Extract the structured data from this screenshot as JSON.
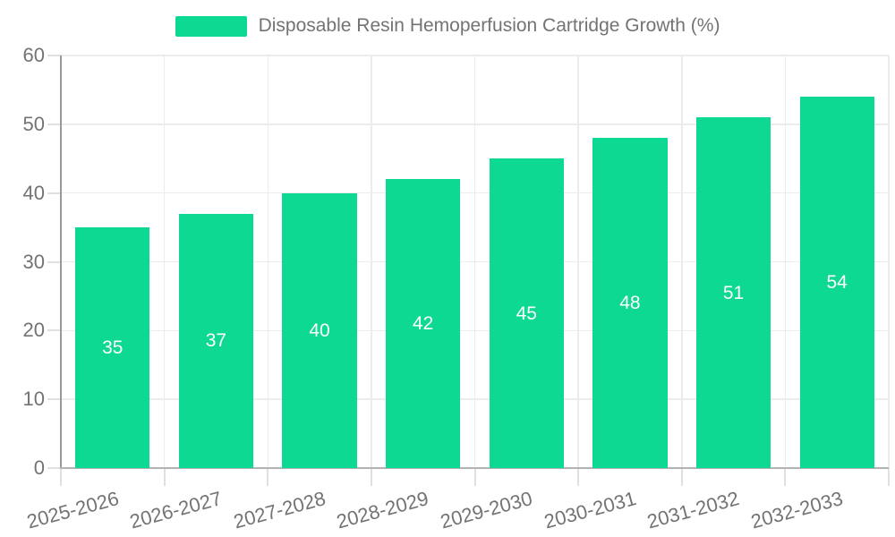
{
  "legend": {
    "label": "Disposable Resin Hemoperfusion Cartridge Growth (%)"
  },
  "colors": {
    "bar": "#0ed992",
    "grid_line": "#ececec",
    "tick_line": "#e0e0e0",
    "y_axis_line": "#999999",
    "x_axis_line": "#b3b3b3",
    "axis_text": "#737373",
    "value_label_text": "#ffffff",
    "background": "#ffffff"
  },
  "chart_data": {
    "type": "bar",
    "title": "",
    "categories": [
      "2025-2026",
      "2026-2027",
      "2027-2028",
      "2028-2029",
      "2029-2030",
      "2030-2031",
      "2031-2032",
      "2032-2033"
    ],
    "series": [
      {
        "name": "Disposable Resin Hemoperfusion Cartridge Growth (%)",
        "values": [
          35,
          37,
          40,
          42,
          45,
          48,
          51,
          54
        ]
      }
    ],
    "xlabel": "",
    "ylabel": "",
    "ylim": [
      0,
      60
    ],
    "yticks": [
      0,
      10,
      20,
      30,
      40,
      50,
      60
    ],
    "grid": true,
    "legend_position": "top-center",
    "value_labels_position": "inside-center",
    "x_tick_rotation_deg": -15
  }
}
